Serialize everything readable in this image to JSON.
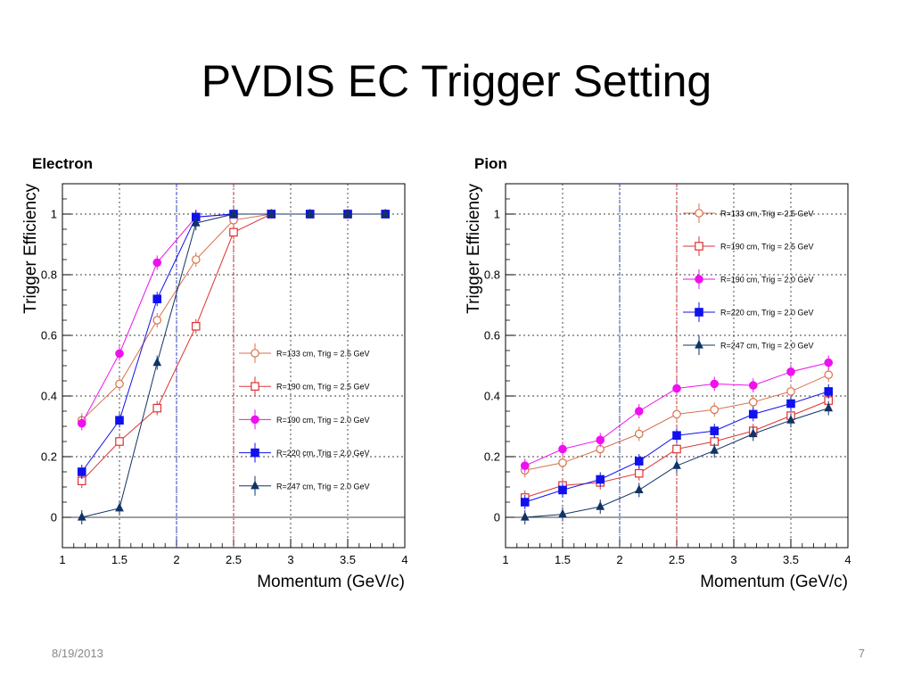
{
  "slide": {
    "title": "PVDIS EC Trigger Setting",
    "date": "8/19/2013",
    "page": "7"
  },
  "chart_data": [
    {
      "type": "line",
      "title": "Electron",
      "xlabel": "Momentum (GeV/c)",
      "ylabel": "Trigger Efficiency",
      "xlim": [
        1,
        4
      ],
      "ylim": [
        -0.1,
        1.1
      ],
      "xticks": [
        "1",
        "1.5",
        "2",
        "2.5",
        "3",
        "3.5",
        "4"
      ],
      "yticks": [
        "0",
        "0.2",
        "0.4",
        "0.6",
        "0.8",
        "1"
      ],
      "grid": true,
      "legend_position": "lower-right",
      "vertical_lines": [
        {
          "x": 2.0,
          "color": "#2233dd"
        },
        {
          "x": 2.5,
          "color": "#dd2222"
        }
      ],
      "x": [
        1.17,
        1.5,
        1.83,
        2.17,
        2.5,
        2.83,
        3.17,
        3.5,
        3.83
      ],
      "series": [
        {
          "name": "R=133 cm, Trig = 2.5 GeV",
          "color": "#d9704a",
          "marker": "circle-open",
          "values": [
            0.32,
            0.44,
            0.65,
            0.85,
            0.98,
            1.0,
            1.0,
            1.0,
            1.0
          ]
        },
        {
          "name": "R=190 cm, Trig = 2.5 GeV",
          "color": "#dd3333",
          "marker": "square-open",
          "values": [
            0.12,
            0.25,
            0.36,
            0.63,
            0.94,
            1.0,
            1.0,
            1.0,
            1.0
          ]
        },
        {
          "name": "R=190 cm, Trig = 2.0 GeV",
          "color": "#ee11ee",
          "marker": "circle",
          "values": [
            0.31,
            0.54,
            0.84,
            0.99,
            1.0,
            1.0,
            1.0,
            1.0,
            1.0
          ]
        },
        {
          "name": "R=220 cm, Trig = 2.0 GeV",
          "color": "#1111ee",
          "marker": "square",
          "values": [
            0.15,
            0.32,
            0.72,
            0.99,
            1.0,
            1.0,
            1.0,
            1.0,
            1.0
          ]
        },
        {
          "name": "R=247 cm, Trig = 2.0 GeV",
          "color": "#113366",
          "marker": "triangle",
          "values": [
            0.0,
            0.03,
            0.51,
            0.97,
            1.0,
            1.0,
            1.0,
            1.0,
            1.0
          ]
        }
      ]
    },
    {
      "type": "line",
      "title": "Pion",
      "xlabel": "Momentum (GeV/c)",
      "ylabel": "Trigger Efficiency",
      "xlim": [
        1,
        4
      ],
      "ylim": [
        -0.1,
        1.1
      ],
      "xticks": [
        "1",
        "1.5",
        "2",
        "2.5",
        "3",
        "3.5",
        "4"
      ],
      "yticks": [
        "0",
        "0.2",
        "0.4",
        "0.6",
        "0.8",
        "1"
      ],
      "grid": true,
      "legend_position": "upper-right",
      "vertical_lines": [
        {
          "x": 2.0,
          "color": "#2233dd"
        },
        {
          "x": 2.5,
          "color": "#dd2222"
        }
      ],
      "x": [
        1.17,
        1.5,
        1.83,
        2.17,
        2.5,
        2.83,
        3.17,
        3.5,
        3.83
      ],
      "series": [
        {
          "name": "R=133 cm, Trig = 2.5 GeV",
          "color": "#d9704a",
          "marker": "circle-open",
          "values": [
            0.155,
            0.18,
            0.225,
            0.275,
            0.34,
            0.355,
            0.38,
            0.415,
            0.47
          ]
        },
        {
          "name": "R=190 cm, Trig = 2.5 GeV",
          "color": "#dd3333",
          "marker": "square-open",
          "values": [
            0.065,
            0.105,
            0.115,
            0.145,
            0.225,
            0.25,
            0.285,
            0.335,
            0.385
          ]
        },
        {
          "name": "R=190 cm, Trig = 2.0 GeV",
          "color": "#ee11ee",
          "marker": "circle",
          "values": [
            0.17,
            0.225,
            0.255,
            0.35,
            0.425,
            0.44,
            0.435,
            0.48,
            0.51
          ]
        },
        {
          "name": "R=220 cm, Trig = 2.0 GeV",
          "color": "#1111ee",
          "marker": "square",
          "values": [
            0.05,
            0.09,
            0.125,
            0.185,
            0.27,
            0.285,
            0.34,
            0.375,
            0.415
          ]
        },
        {
          "name": "R=247 cm, Trig = 2.0 GeV",
          "color": "#113366",
          "marker": "triangle",
          "values": [
            0.0,
            0.01,
            0.035,
            0.09,
            0.17,
            0.22,
            0.275,
            0.32,
            0.36
          ]
        }
      ]
    }
  ]
}
